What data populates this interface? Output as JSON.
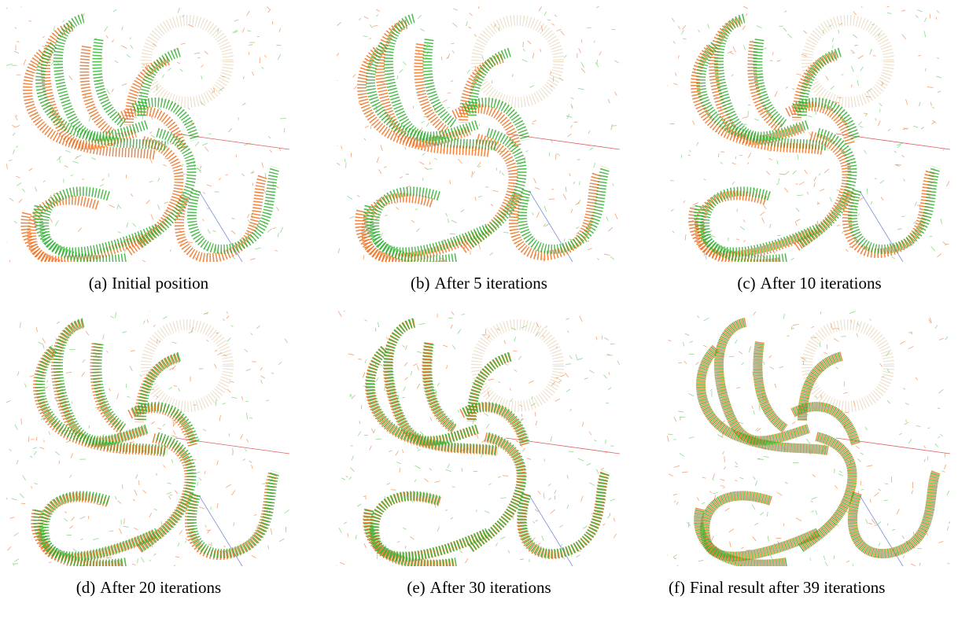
{
  "figures": [
    {
      "label": "(a)",
      "caption": "Initial position"
    },
    {
      "label": "(b)",
      "caption": "After 5 iterations"
    },
    {
      "label": "(c)",
      "caption": "After 10 iterations"
    },
    {
      "label": "(d)",
      "caption": "After 20 iterations"
    },
    {
      "label": "(e)",
      "caption": "After 30 iterations"
    },
    {
      "label": "(f)",
      "caption": "Final result after 39 iterations"
    }
  ]
}
